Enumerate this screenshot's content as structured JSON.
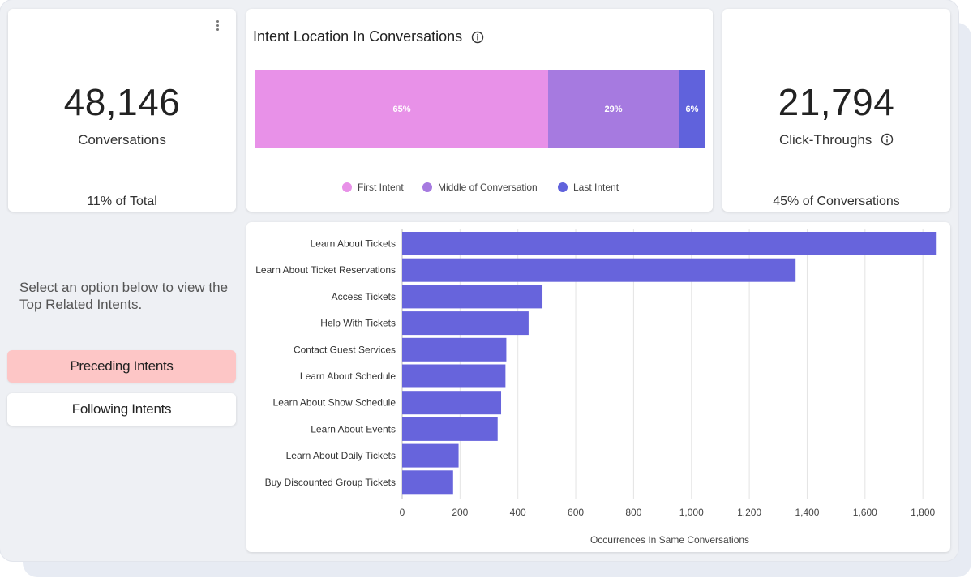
{
  "kpi_conversations": {
    "value": "48,146",
    "label": "Conversations",
    "footer": "11% of Total"
  },
  "kpi_clicks": {
    "value": "21,794",
    "label": "Click-Throughs",
    "footer": "45% of Conversations"
  },
  "intent_location": {
    "title": "Intent Location In Conversations",
    "segments": [
      {
        "name": "First Intent",
        "value": 65,
        "label": "65%",
        "color": "#e891e8"
      },
      {
        "name": "Middle of Conversation",
        "value": 29,
        "label": "29%",
        "color": "#a67ae0"
      },
      {
        "name": "Last Intent",
        "value": 6,
        "label": "6%",
        "color": "#6062dc"
      }
    ]
  },
  "related": {
    "prompt": "Select an option below to view the Top Related Intents.",
    "buttons": {
      "preceding": "Preceding Intents",
      "following": "Following Intents"
    }
  },
  "chart_data": [
    {
      "type": "bar",
      "orientation": "stacked-horizontal",
      "title": "Intent Location In Conversations",
      "categories": [
        "First Intent",
        "Middle of Conversation",
        "Last Intent"
      ],
      "values": [
        65,
        29,
        6
      ],
      "unit": "%",
      "legend": "bottom"
    },
    {
      "type": "bar",
      "orientation": "horizontal",
      "categories": [
        "Learn About Tickets",
        "Learn About Ticket Reservations",
        "Access Tickets",
        "Help With Tickets",
        "Contact Guest Services",
        "Learn About Schedule",
        "Learn About Show Schedule",
        "Learn About Events",
        "Learn About Daily Tickets",
        "Buy Discounted Group Tickets"
      ],
      "values": [
        1845,
        1360,
        485,
        437,
        360,
        357,
        342,
        330,
        195,
        176
      ],
      "xlabel": "Occurrences In Same Conversations",
      "xlim": [
        0,
        1850
      ],
      "xticks": [
        0,
        200,
        400,
        600,
        800,
        1000,
        1200,
        1400,
        1600,
        1800
      ],
      "xtick_labels": [
        "0",
        "200",
        "400",
        "600",
        "800",
        "1,000",
        "1,200",
        "1,400",
        "1,600",
        "1,800"
      ],
      "grid": true,
      "color": "#6764dc"
    }
  ]
}
